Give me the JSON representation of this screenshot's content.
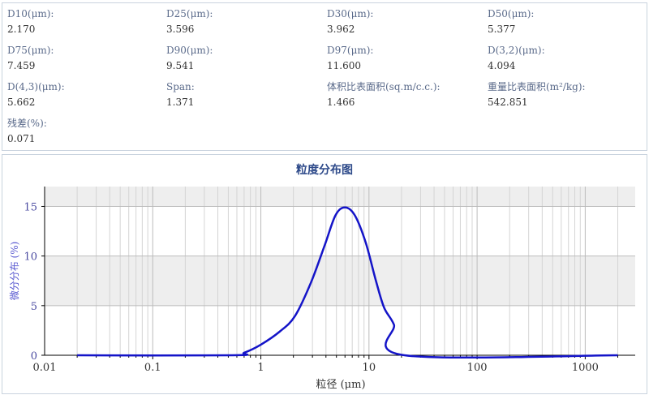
{
  "stats": [
    {
      "label": "D10(μm):",
      "value": "2.170"
    },
    {
      "label": "D25(μm):",
      "value": "3.596"
    },
    {
      "label": "D30(μm):",
      "value": "3.962"
    },
    {
      "label": "D50(μm):",
      "value": "5.377"
    },
    {
      "label": "D75(μm):",
      "value": "7.459"
    },
    {
      "label": "D90(μm):",
      "value": "9.541"
    },
    {
      "label": "D97(μm):",
      "value": "11.600"
    },
    {
      "label": "D(3,2)(μm):",
      "value": "4.094"
    },
    {
      "label": "D(4,3)(μm):",
      "value": "5.662"
    },
    {
      "label": "Span:",
      "value": "1.371"
    },
    {
      "label": "体积比表面积(sq.m/c.c.):",
      "value": "1.466"
    },
    {
      "label": "重量比表面积(m²/kg):",
      "value": "542.851"
    },
    {
      "label": "残差(%):",
      "value": "0.071"
    }
  ],
  "chart_data": {
    "type": "line",
    "title": "粒度分布图",
    "xlabel": "粒径 (μm)",
    "ylabel": "微分分布 (%)",
    "xscale": "log",
    "xlim": [
      0.01,
      2900
    ],
    "ylim": [
      0,
      17
    ],
    "xticks": [
      "0.01",
      "0.1",
      "1",
      "10",
      "100",
      "1000"
    ],
    "yticks": [
      "0",
      "5",
      "10",
      "15"
    ],
    "grid": true,
    "color": "#1414c8",
    "series": [
      {
        "x": [
          0.02,
          0.55,
          0.7,
          1.0,
          1.5,
          2.07,
          2.9,
          3.9,
          4.9,
          6.0,
          7.4,
          9.3,
          11.6,
          13.8,
          17.0,
          21.3,
          2000
        ],
        "y": [
          0,
          0,
          0.25,
          1.07,
          2.4,
          3.96,
          7.3,
          11.1,
          14.1,
          14.9,
          14.1,
          11.4,
          7.5,
          4.8,
          3.1,
          0,
          0
        ]
      }
    ]
  }
}
